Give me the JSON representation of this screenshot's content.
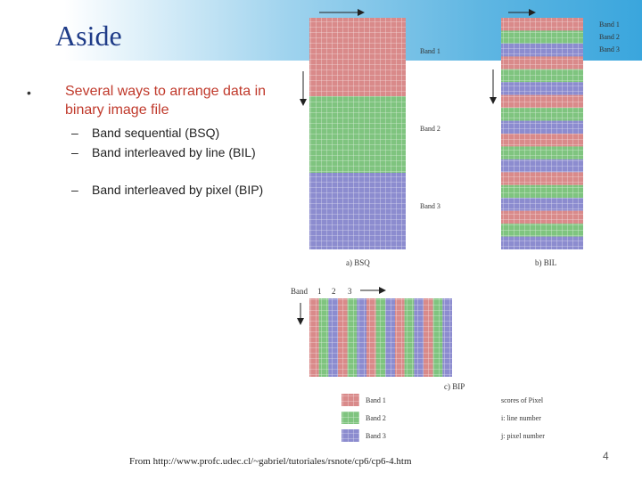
{
  "slide": {
    "title": "Aside",
    "bullet_marker": "•",
    "main_bullet": "Several ways to arrange data in binary image file",
    "sub_items": [
      {
        "dash": "–",
        "text": "Band sequential (BSQ)"
      },
      {
        "dash": "–",
        "text": "Band interleaved by line (BIL)"
      },
      {
        "dash": "–",
        "text": "Band interleaved by pixel (BIP)"
      }
    ],
    "source": "From http://www.profc.udec.cl/~gabriel/tutoriales/rsnote/cp6/cp6-4.htm",
    "page_number": "4"
  },
  "figure": {
    "bsq": {
      "caption": "a) BSQ",
      "band_labels": [
        "Band 1",
        "Band 2",
        "Band 3"
      ]
    },
    "bil": {
      "caption": "b) BIL",
      "legend": [
        "Band 1",
        "Band 2",
        "Band 3"
      ]
    },
    "bip": {
      "caption": "c) BIP",
      "header": [
        "Band",
        "1",
        "2",
        "3"
      ]
    },
    "legend": [
      {
        "band": "Band 1",
        "desc": "scores of Pixel",
        "color": "#d98a8a"
      },
      {
        "band": "Band 2",
        "desc": "i: line number",
        "color": "#7fc47f"
      },
      {
        "band": "Band 3",
        "desc": "j: pixel number",
        "color": "#8c8ccf"
      }
    ],
    "colors": {
      "band1": "#d98a8a",
      "band2": "#7fc47f",
      "band3": "#8c8ccf",
      "grid": "#ffffff"
    }
  }
}
